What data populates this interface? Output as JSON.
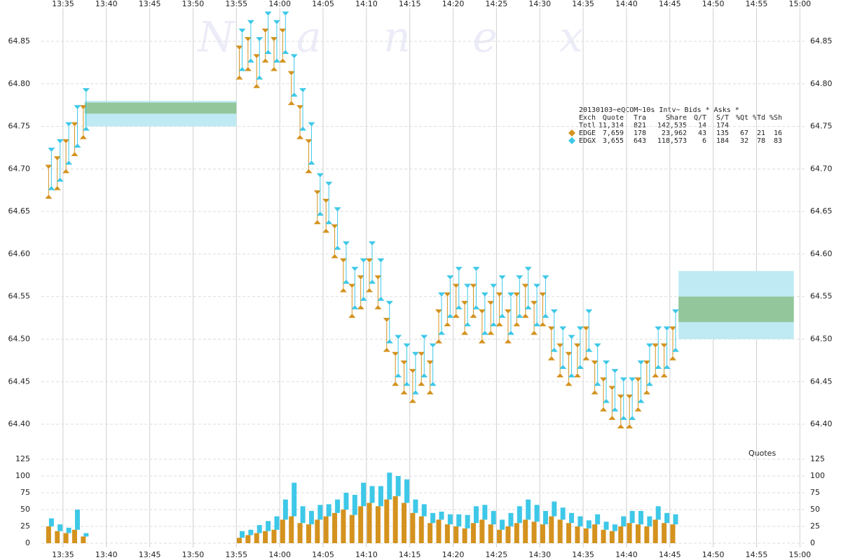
{
  "chart_data": {
    "type": "quotes",
    "watermark": "N a n e x",
    "panel_label": "Quotes",
    "legend_table": {
      "title": "20130103~eQCOM~10s Intv~ Bids * Asks *",
      "header": [
        "Exch",
        "Quote",
        "Tra",
        "Share",
        "Q/T",
        "S/T",
        "%Qt",
        "%Td",
        "%Sh"
      ],
      "rows": [
        [
          "Totl",
          "11,314",
          "821",
          "142,535",
          "14",
          "174"
        ],
        [
          "EDGE",
          "7,659",
          "178",
          "23,962",
          "43",
          "135",
          "67",
          "21",
          "16"
        ],
        [
          "EDGX",
          "3,655",
          "643",
          "118,573",
          "6",
          "184",
          "32",
          "78",
          "83"
        ]
      ]
    },
    "xlim": [
      812.5,
      900.7
    ],
    "xticks": [
      {
        "value": 815,
        "label": "13:35"
      },
      {
        "value": 820,
        "label": "13:40"
      },
      {
        "value": 825,
        "label": "13:45"
      },
      {
        "value": 830,
        "label": "13:50"
      },
      {
        "value": 835,
        "label": "13:55"
      },
      {
        "value": 840,
        "label": "14:00"
      },
      {
        "value": 845,
        "label": "14:05"
      },
      {
        "value": 850,
        "label": "14:10"
      },
      {
        "value": 855,
        "label": "14:15"
      },
      {
        "value": 860,
        "label": "14:20"
      },
      {
        "value": 865,
        "label": "14:25"
      },
      {
        "value": 870,
        "label": "14:30"
      },
      {
        "value": 875,
        "label": "14:35"
      },
      {
        "value": 880,
        "label": "14:40"
      },
      {
        "value": 885,
        "label": "14:45"
      },
      {
        "value": 890,
        "label": "14:50"
      },
      {
        "value": 895,
        "label": "14:55"
      },
      {
        "value": 900,
        "label": "15:00"
      }
    ],
    "ylim": [
      64.37,
      64.89
    ],
    "yticks": [
      {
        "value": 64.4,
        "label": "64.40"
      },
      64.45,
      {
        "value": 64.5,
        "label": "64.50"
      },
      64.55,
      {
        "value": 64.6,
        "label": "64.60"
      },
      64.65,
      {
        "value": 64.7,
        "label": "64.70"
      },
      64.75,
      {
        "value": 64.8,
        "label": "64.80"
      },
      64.85
    ],
    "y2lim": [
      0,
      125
    ],
    "y2ticks": [
      0,
      25,
      50,
      75,
      100,
      125
    ],
    "grid": true,
    "bands": [
      {
        "start": 817.5,
        "end": 835,
        "low": 64.75,
        "high": 64.78,
        "bid": 64.765,
        "ask": 64.778
      },
      {
        "start": 886,
        "end": 899.3,
        "low": 64.5,
        "high": 64.58,
        "bid": 64.52,
        "ask": 64.55
      }
    ],
    "x": [
      813.5,
      814.5,
      815.5,
      816.5,
      817.5,
      835.5,
      836.5,
      837.5,
      838.5,
      839.5,
      840.5,
      841.5,
      842.5,
      843.5,
      844.5,
      845.5,
      846.5,
      847.5,
      848.5,
      849.5,
      850.5,
      851.5,
      852.5,
      853.5,
      854.5,
      855.5,
      856.5,
      857.5,
      858.5,
      859.5,
      860.5,
      861.5,
      862.5,
      863.5,
      864.5,
      865.5,
      866.5,
      867.5,
      868.5,
      869.5,
      870.5,
      871.5,
      872.5,
      873.5,
      874.5,
      875.5,
      876.5,
      877.5,
      878.5,
      879.5,
      880.5,
      881.5,
      882.5,
      883.5,
      884.5,
      885.5
    ],
    "series": [
      {
        "name": "EDGE",
        "color": "#d4921e",
        "values": [
          64.67,
          64.68,
          64.7,
          64.72,
          64.74,
          64.81,
          64.82,
          64.8,
          64.83,
          64.82,
          64.83,
          64.78,
          64.74,
          64.7,
          64.64,
          64.63,
          64.6,
          64.56,
          64.53,
          64.54,
          64.56,
          64.54,
          64.49,
          64.45,
          64.44,
          64.43,
          64.45,
          64.44,
          64.5,
          64.52,
          64.53,
          64.51,
          64.53,
          64.5,
          64.51,
          64.52,
          64.5,
          64.52,
          64.53,
          64.51,
          64.52,
          64.48,
          64.46,
          64.45,
          64.46,
          64.48,
          64.44,
          64.42,
          64.41,
          64.4,
          64.4,
          64.42,
          64.44,
          64.46,
          64.46,
          64.48
        ],
        "asks": [
          64.7,
          64.71,
          64.73,
          64.75,
          64.77,
          64.84,
          64.85,
          64.83,
          64.86,
          64.85,
          64.86,
          64.81,
          64.77,
          64.73,
          64.67,
          64.66,
          64.63,
          64.59,
          64.56,
          64.57,
          64.59,
          64.57,
          64.52,
          64.48,
          64.47,
          64.46,
          64.48,
          64.47,
          64.53,
          64.55,
          64.56,
          64.54,
          64.56,
          64.53,
          64.54,
          64.55,
          64.53,
          64.55,
          64.56,
          64.54,
          64.55,
          64.51,
          64.49,
          64.48,
          64.49,
          64.51,
          64.47,
          64.45,
          64.44,
          64.43,
          64.43,
          64.45,
          64.47,
          64.49,
          64.49,
          64.51
        ],
        "quotes": [
          25,
          18,
          15,
          20,
          10,
          8,
          12,
          15,
          18,
          20,
          35,
          40,
          30,
          28,
          35,
          40,
          45,
          50,
          42,
          55,
          60,
          55,
          65,
          70,
          60,
          45,
          40,
          30,
          35,
          28,
          25,
          22,
          30,
          35,
          28,
          20,
          25,
          30,
          35,
          32,
          28,
          40,
          35,
          30,
          25,
          22,
          28,
          20,
          18,
          25,
          30,
          28,
          25,
          35,
          30,
          28
        ]
      },
      {
        "name": "EDGX",
        "color": "#3ec8e8",
        "values": [
          64.68,
          64.69,
          64.71,
          64.73,
          64.75,
          64.82,
          64.83,
          64.81,
          64.84,
          64.83,
          64.84,
          64.79,
          64.75,
          64.71,
          64.65,
          64.64,
          64.61,
          64.57,
          64.54,
          64.55,
          64.57,
          64.55,
          64.5,
          64.46,
          64.45,
          64.44,
          64.46,
          64.45,
          64.51,
          64.53,
          64.54,
          64.52,
          64.54,
          64.51,
          64.52,
          64.53,
          64.51,
          64.53,
          64.54,
          64.52,
          64.53,
          64.49,
          64.47,
          64.46,
          64.47,
          64.49,
          64.45,
          64.43,
          64.42,
          64.41,
          64.41,
          64.43,
          64.45,
          64.47,
          64.47,
          64.49
        ],
        "asks": [
          64.72,
          64.73,
          64.75,
          64.77,
          64.79,
          64.86,
          64.87,
          64.85,
          64.88,
          64.87,
          64.88,
          64.83,
          64.79,
          64.75,
          64.69,
          64.68,
          64.65,
          64.61,
          64.58,
          64.59,
          64.61,
          64.59,
          64.54,
          64.5,
          64.49,
          64.48,
          64.5,
          64.49,
          64.55,
          64.57,
          64.58,
          64.56,
          64.58,
          64.55,
          64.56,
          64.57,
          64.55,
          64.57,
          64.58,
          64.56,
          64.57,
          64.53,
          64.51,
          64.5,
          64.51,
          64.53,
          64.49,
          64.47,
          64.46,
          64.45,
          64.45,
          64.47,
          64.49,
          64.51,
          64.51,
          64.53
        ],
        "quotes": [
          12,
          10,
          8,
          30,
          5,
          10,
          8,
          12,
          15,
          20,
          30,
          50,
          25,
          20,
          22,
          18,
          20,
          25,
          30,
          35,
          25,
          30,
          40,
          30,
          35,
          20,
          18,
          15,
          12,
          15,
          18,
          20,
          25,
          22,
          20,
          15,
          20,
          25,
          30,
          25,
          20,
          22,
          18,
          15,
          15,
          12,
          15,
          12,
          10,
          15,
          18,
          20,
          15,
          20,
          15,
          15
        ]
      }
    ]
  }
}
